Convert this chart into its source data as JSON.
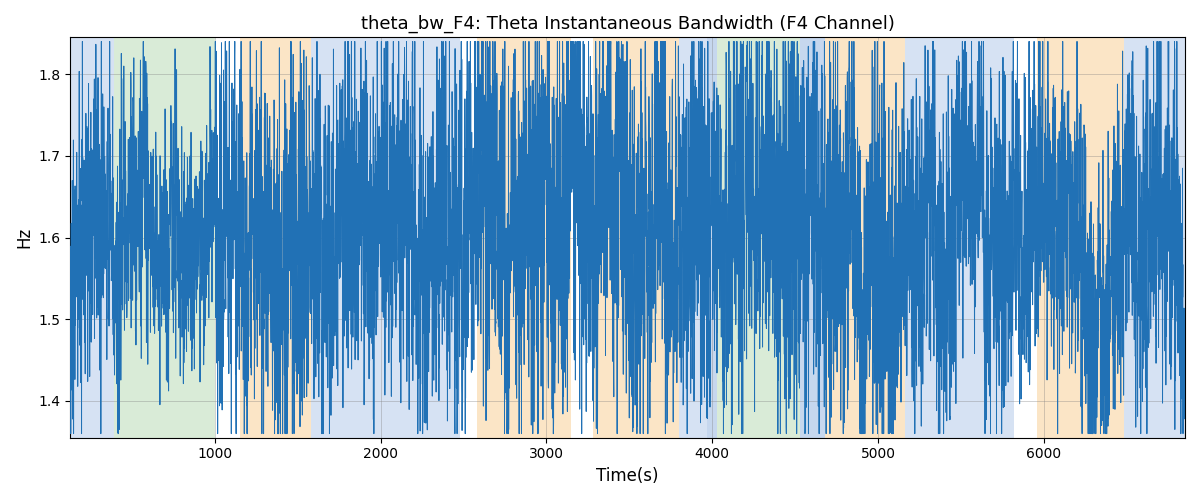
{
  "title": "theta_bw_F4: Theta Instantaneous Bandwidth (F4 Channel)",
  "xlabel": "Time(s)",
  "ylabel": "Hz",
  "xlim": [
    130,
    6850
  ],
  "ylim": [
    1.355,
    1.845
  ],
  "yticks": [
    1.4,
    1.5,
    1.6,
    1.7,
    1.8
  ],
  "xticks": [
    1000,
    2000,
    3000,
    4000,
    5000,
    6000
  ],
  "line_color": "#2171b5",
  "line_width": 0.7,
  "bg_bands": [
    {
      "xmin": 130,
      "xmax": 390,
      "color": "#aec6e8",
      "alpha": 0.5
    },
    {
      "xmin": 390,
      "xmax": 1000,
      "color": "#b5d9b0",
      "alpha": 0.5
    },
    {
      "xmin": 1000,
      "xmax": 1150,
      "color": "#ffffff",
      "alpha": 0.85
    },
    {
      "xmin": 1150,
      "xmax": 1580,
      "color": "#f9d4a0",
      "alpha": 0.6
    },
    {
      "xmin": 1580,
      "xmax": 2480,
      "color": "#aec6e8",
      "alpha": 0.5
    },
    {
      "xmin": 2480,
      "xmax": 2580,
      "color": "#ffffff",
      "alpha": 0.85
    },
    {
      "xmin": 2580,
      "xmax": 3150,
      "color": "#f9d4a0",
      "alpha": 0.6
    },
    {
      "xmin": 3150,
      "xmax": 3280,
      "color": "#ffffff",
      "alpha": 0.85
    },
    {
      "xmin": 3280,
      "xmax": 3800,
      "color": "#f9d4a0",
      "alpha": 0.6
    },
    {
      "xmin": 3800,
      "xmax": 3970,
      "color": "#aec6e8",
      "alpha": 0.5
    },
    {
      "xmin": 3970,
      "xmax": 4030,
      "color": "#aec6e8",
      "alpha": 0.7
    },
    {
      "xmin": 4030,
      "xmax": 4530,
      "color": "#b5d9b0",
      "alpha": 0.5
    },
    {
      "xmin": 4530,
      "xmax": 4680,
      "color": "#aec6e8",
      "alpha": 0.7
    },
    {
      "xmin": 4680,
      "xmax": 5160,
      "color": "#f9d4a0",
      "alpha": 0.6
    },
    {
      "xmin": 5160,
      "xmax": 5820,
      "color": "#aec6e8",
      "alpha": 0.5
    },
    {
      "xmin": 5820,
      "xmax": 5960,
      "color": "#ffffff",
      "alpha": 0.85
    },
    {
      "xmin": 5960,
      "xmax": 6480,
      "color": "#f9d4a0",
      "alpha": 0.6
    },
    {
      "xmin": 6480,
      "xmax": 6850,
      "color": "#aec6e8",
      "alpha": 0.5
    }
  ],
  "seed": 12345,
  "n_points": 6700,
  "t_start": 130,
  "t_end": 6850,
  "signal_mean": 1.615,
  "figsize": [
    12.0,
    5.0
  ],
  "dpi": 100,
  "amp_regions": [
    {
      "t0": 130,
      "t1": 600,
      "amp": 0.09
    },
    {
      "t0": 600,
      "t1": 1000,
      "amp": 0.07
    },
    {
      "t0": 1000,
      "t1": 1580,
      "amp": 0.12
    },
    {
      "t0": 1580,
      "t1": 2480,
      "amp": 0.1
    },
    {
      "t0": 2480,
      "t1": 3800,
      "amp": 0.12
    },
    {
      "t0": 3800,
      "t1": 4530,
      "amp": 0.12
    },
    {
      "t0": 4530,
      "t1": 5160,
      "amp": 0.12
    },
    {
      "t0": 5160,
      "t1": 5820,
      "amp": 0.1
    },
    {
      "t0": 5820,
      "t1": 6850,
      "amp": 0.1
    }
  ]
}
